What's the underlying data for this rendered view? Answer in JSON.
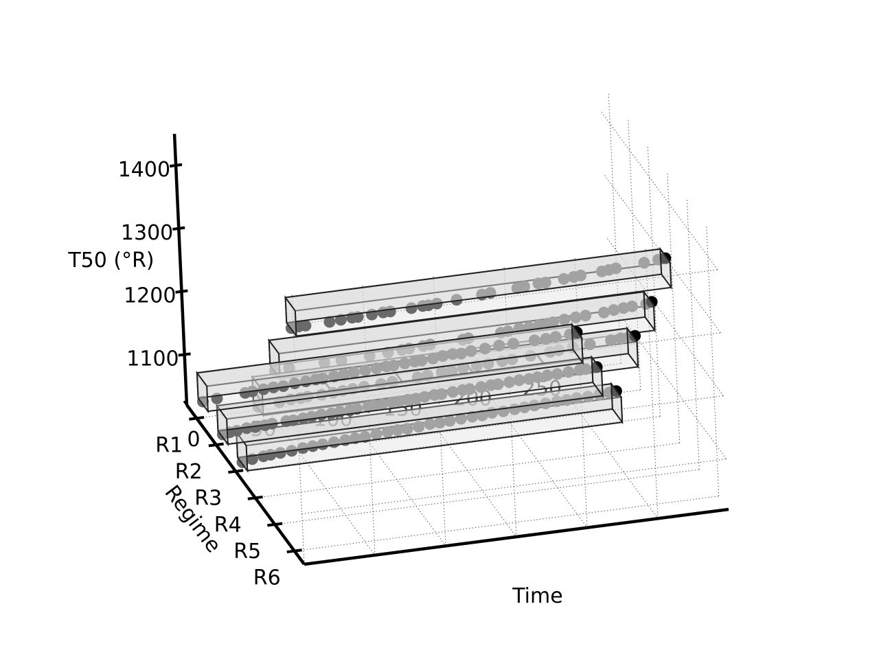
{
  "chart_data": {
    "type": "scatter",
    "projection": "3d",
    "title": "",
    "xlabel": "Time",
    "ylabel": "Regime",
    "zlabel": "T50 (°R)",
    "x_ticks": [
      "0",
      "50",
      "100",
      "150",
      "200",
      "250"
    ],
    "y_ticks": [
      "R1",
      "R2",
      "R3",
      "R4",
      "R5",
      "R6"
    ],
    "z_ticks": [
      "1100",
      "1200",
      "1300",
      "1400"
    ],
    "xlim": [
      0,
      300
    ],
    "ylim": [
      0.5,
      6.5
    ],
    "zlim": [
      1020,
      1450
    ],
    "grid": true,
    "colors": {
      "points": "#6a6a6a",
      "last_point": "#000000",
      "box_fill": "#d9d9d9",
      "box_edge": "#222222",
      "axis": "#000000",
      "grid": "#555555"
    },
    "series": [
      {
        "name": "R1",
        "regime": 1,
        "z_range": [
          1040,
          1080
        ],
        "time_range": [
          5,
          270
        ],
        "points": [
          [
            5,
            1045
          ],
          [
            15,
            1047
          ],
          [
            35,
            1050
          ],
          [
            40,
            1051
          ],
          [
            48,
            1052
          ],
          [
            55,
            1053
          ],
          [
            62,
            1053
          ],
          [
            70,
            1055
          ],
          [
            78,
            1056
          ],
          [
            85,
            1057
          ],
          [
            90,
            1057
          ],
          [
            98,
            1058
          ],
          [
            105,
            1059
          ],
          [
            112,
            1060
          ],
          [
            120,
            1061
          ],
          [
            128,
            1062
          ],
          [
            135,
            1063
          ],
          [
            140,
            1063
          ],
          [
            148,
            1064
          ],
          [
            155,
            1065
          ],
          [
            160,
            1065
          ],
          [
            168,
            1066
          ],
          [
            175,
            1068
          ],
          [
            182,
            1069
          ],
          [
            188,
            1068
          ],
          [
            195,
            1070
          ],
          [
            205,
            1071
          ],
          [
            215,
            1073
          ],
          [
            225,
            1073
          ],
          [
            240,
            1074
          ],
          [
            248,
            1074
          ],
          [
            255,
            1075
          ],
          [
            265,
            1076
          ],
          [
            270,
            1078
          ]
        ]
      },
      {
        "name": "R2",
        "regime": 2,
        "z_range": [
          1030,
          1070
        ],
        "time_range": [
          5,
          270
        ],
        "points": [
          [
            5,
            1035
          ],
          [
            10,
            1037
          ],
          [
            15,
            1038
          ],
          [
            22,
            1040
          ],
          [
            28,
            1040
          ],
          [
            35,
            1041
          ],
          [
            40,
            1042
          ],
          [
            50,
            1043
          ],
          [
            55,
            1043
          ],
          [
            62,
            1044
          ],
          [
            68,
            1045
          ],
          [
            75,
            1046
          ],
          [
            82,
            1046
          ],
          [
            88,
            1047
          ],
          [
            95,
            1047
          ],
          [
            100,
            1048
          ],
          [
            108,
            1049
          ],
          [
            112,
            1050
          ],
          [
            118,
            1050
          ],
          [
            125,
            1051
          ],
          [
            130,
            1051
          ],
          [
            136,
            1052
          ],
          [
            142,
            1052
          ],
          [
            148,
            1053
          ],
          [
            155,
            1054
          ],
          [
            160,
            1054
          ],
          [
            168,
            1055
          ],
          [
            175,
            1056
          ],
          [
            180,
            1056
          ],
          [
            188,
            1057
          ],
          [
            195,
            1058
          ],
          [
            200,
            1058
          ],
          [
            208,
            1059
          ],
          [
            215,
            1060
          ],
          [
            222,
            1060
          ],
          [
            228,
            1061
          ],
          [
            235,
            1062
          ],
          [
            242,
            1062
          ],
          [
            250,
            1063
          ],
          [
            258,
            1064
          ],
          [
            262,
            1064
          ],
          [
            270,
            1065
          ]
        ]
      },
      {
        "name": "R3",
        "regime": 3,
        "z_range": [
          1030,
          1070
        ],
        "time_range": [
          5,
          270
        ],
        "points": [
          [
            5,
            1033
          ],
          [
            12,
            1036
          ],
          [
            20,
            1038
          ],
          [
            25,
            1039
          ],
          [
            32,
            1040
          ],
          [
            40,
            1041
          ],
          [
            48,
            1043
          ],
          [
            55,
            1044
          ],
          [
            62,
            1045
          ],
          [
            70,
            1046
          ],
          [
            78,
            1047
          ],
          [
            85,
            1048
          ],
          [
            92,
            1048
          ],
          [
            100,
            1050
          ],
          [
            108,
            1051
          ],
          [
            115,
            1052
          ],
          [
            122,
            1052
          ],
          [
            130,
            1053
          ],
          [
            138,
            1055
          ],
          [
            145,
            1055
          ],
          [
            152,
            1056
          ],
          [
            160,
            1057
          ],
          [
            168,
            1058
          ],
          [
            175,
            1058
          ],
          [
            182,
            1060
          ],
          [
            190,
            1060
          ],
          [
            198,
            1061
          ],
          [
            205,
            1062
          ],
          [
            212,
            1063
          ],
          [
            220,
            1064
          ],
          [
            228,
            1065
          ],
          [
            235,
            1065
          ],
          [
            242,
            1066
          ],
          [
            250,
            1066
          ],
          [
            258,
            1067
          ],
          [
            265,
            1068
          ],
          [
            270,
            1069
          ]
        ]
      },
      {
        "name": "R4",
        "regime": 4,
        "z_range": [
          1160,
          1200
        ],
        "time_range": [
          5,
          270
        ],
        "points": [
          [
            5,
            1163
          ],
          [
            20,
            1166
          ],
          [
            28,
            1168
          ],
          [
            35,
            1168
          ],
          [
            40,
            1169
          ],
          [
            50,
            1169
          ],
          [
            58,
            1170
          ],
          [
            65,
            1171
          ],
          [
            72,
            1172
          ],
          [
            80,
            1173
          ],
          [
            92,
            1174
          ],
          [
            100,
            1175
          ],
          [
            118,
            1177
          ],
          [
            125,
            1178
          ],
          [
            135,
            1180
          ],
          [
            142,
            1180
          ],
          [
            150,
            1182
          ],
          [
            160,
            1183
          ],
          [
            168,
            1184
          ],
          [
            178,
            1185
          ],
          [
            185,
            1186
          ],
          [
            198,
            1188
          ],
          [
            212,
            1190
          ],
          [
            218,
            1191
          ],
          [
            228,
            1193
          ],
          [
            240,
            1194
          ],
          [
            255,
            1196
          ],
          [
            262,
            1197
          ],
          [
            268,
            1198
          ],
          [
            272,
            1198
          ]
        ]
      },
      {
        "name": "R5",
        "regime": 5,
        "z_range": [
          1260,
          1300
        ],
        "time_range": [
          5,
          270
        ],
        "points": [
          [
            5,
            1262
          ],
          [
            15,
            1264
          ],
          [
            40,
            1265
          ],
          [
            52,
            1265
          ],
          [
            72,
            1266
          ],
          [
            85,
            1268
          ],
          [
            95,
            1269
          ],
          [
            100,
            1270
          ],
          [
            110,
            1271
          ],
          [
            115,
            1272
          ],
          [
            138,
            1273
          ],
          [
            142,
            1274
          ],
          [
            165,
            1276
          ],
          [
            170,
            1277
          ],
          [
            178,
            1279
          ],
          [
            185,
            1279
          ],
          [
            192,
            1280
          ],
          [
            198,
            1281
          ],
          [
            202,
            1282
          ],
          [
            210,
            1284
          ],
          [
            218,
            1285
          ],
          [
            225,
            1286
          ],
          [
            238,
            1287
          ],
          [
            245,
            1289
          ],
          [
            252,
            1290
          ],
          [
            258,
            1291
          ],
          [
            268,
            1292
          ],
          [
            272,
            1294
          ]
        ]
      },
      {
        "name": "R6",
        "regime": 6,
        "z_range": [
          1370,
          1410
        ],
        "time_range": [
          5,
          270
        ],
        "points": [
          [
            5,
            1372
          ],
          [
            10,
            1373
          ],
          [
            15,
            1373
          ],
          [
            32,
            1374
          ],
          [
            40,
            1375
          ],
          [
            48,
            1376
          ],
          [
            52,
            1376
          ],
          [
            62,
            1377
          ],
          [
            70,
            1378
          ],
          [
            75,
            1378
          ],
          [
            90,
            1379
          ],
          [
            98,
            1380
          ],
          [
            102,
            1380
          ],
          [
            108,
            1381
          ],
          [
            122,
            1383
          ],
          [
            140,
            1386
          ],
          [
            146,
            1387
          ],
          [
            165,
            1389
          ],
          [
            170,
            1390
          ],
          [
            180,
            1392
          ],
          [
            185,
            1392
          ],
          [
            198,
            1394
          ],
          [
            205,
            1395
          ],
          [
            210,
            1396
          ],
          [
            225,
            1398
          ],
          [
            230,
            1399
          ],
          [
            235,
            1400
          ],
          [
            255,
            1403
          ],
          [
            265,
            1405
          ],
          [
            270,
            1406
          ]
        ]
      }
    ]
  }
}
